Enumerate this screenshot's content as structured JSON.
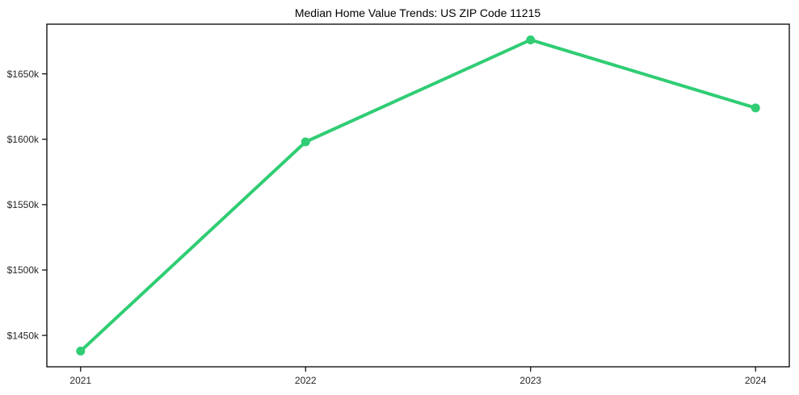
{
  "chart_data": {
    "type": "line",
    "title": "Median Home Value Trends: US ZIP Code 11215",
    "x": [
      2021,
      2022,
      2023,
      2024
    ],
    "x_tick_labels": [
      "2021",
      "2022",
      "2023",
      "2024"
    ],
    "series": [
      {
        "name": "Median Home Value",
        "values": [
          1438,
          1598,
          1676,
          1624
        ],
        "unit": "thousand USD"
      }
    ],
    "y_ticks": [
      1450,
      1500,
      1550,
      1600,
      1650
    ],
    "y_tick_labels": [
      "$1450k",
      "$1500k",
      "$1550k",
      "$1600k",
      "$1650k"
    ],
    "xlim": [
      2020.85,
      2024.15
    ],
    "ylim": [
      1426,
      1688
    ],
    "xlabel": "",
    "ylabel": "",
    "grid": false,
    "legend": false,
    "colors": {
      "line": "#30cd74",
      "marker": "#30cd74",
      "axis": "#000000",
      "tick_label": "#262626",
      "title": "#000000",
      "background": "#ffffff"
    },
    "line_width": 4,
    "marker_radius": 5.5
  }
}
